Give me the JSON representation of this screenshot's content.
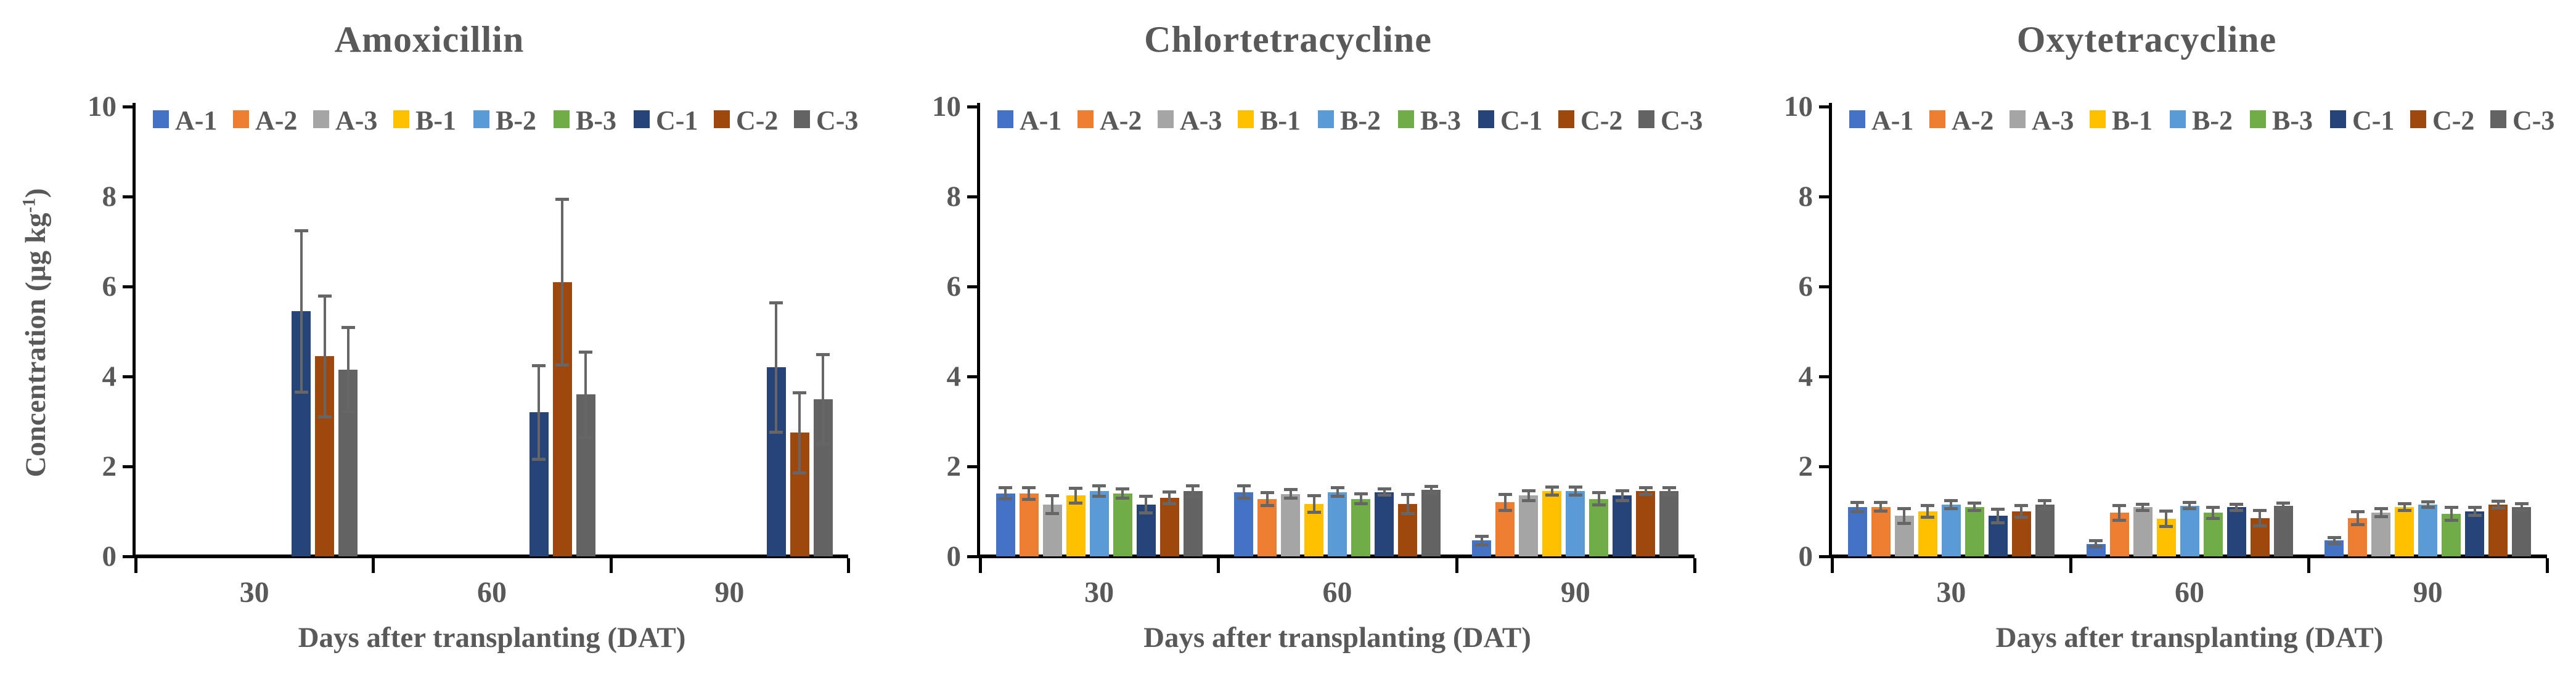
{
  "style": {
    "background": "#ffffff",
    "text_color": "#595959",
    "axis_color": "#000000",
    "error_bar_color": "#666666"
  },
  "chart_data": [
    {
      "type": "bar",
      "title": "Amoxicillin",
      "xlabel": "Days after transplanting (DAT)",
      "ylabel_main": "Concentration (µg kg",
      "ylabel_sup": "-1",
      "ylabel_end": ")",
      "categories": [
        "30",
        "60",
        "90"
      ],
      "ylim": [
        0,
        10
      ],
      "yticks": [
        0,
        2,
        4,
        6,
        8,
        10
      ],
      "grid": false,
      "legend_position": "top-inside",
      "series": [
        {
          "name": "A-1",
          "color": "#4472C4",
          "values": [
            0,
            0,
            0
          ],
          "errors": [
            0,
            0,
            0
          ]
        },
        {
          "name": "A-2",
          "color": "#ED7D31",
          "values": [
            0,
            0,
            0
          ],
          "errors": [
            0,
            0,
            0
          ]
        },
        {
          "name": "A-3",
          "color": "#A5A5A5",
          "values": [
            0,
            0,
            0
          ],
          "errors": [
            0,
            0,
            0
          ]
        },
        {
          "name": "B-1",
          "color": "#FFC000",
          "values": [
            0,
            0,
            0
          ],
          "errors": [
            0,
            0,
            0
          ]
        },
        {
          "name": "B-2",
          "color": "#5B9BD5",
          "values": [
            0,
            0,
            0
          ],
          "errors": [
            0,
            0,
            0
          ]
        },
        {
          "name": "B-3",
          "color": "#70AD47",
          "values": [
            0,
            0,
            0
          ],
          "errors": [
            0,
            0,
            0
          ]
        },
        {
          "name": "C-1",
          "color": "#264478",
          "values": [
            5.45,
            3.2,
            4.2
          ],
          "errors": [
            1.8,
            1.05,
            1.45
          ]
        },
        {
          "name": "C-2",
          "color": "#9E480E",
          "values": [
            4.45,
            6.1,
            2.75
          ],
          "errors": [
            1.35,
            1.85,
            0.9
          ]
        },
        {
          "name": "C-3",
          "color": "#636363",
          "values": [
            4.15,
            3.6,
            3.5
          ],
          "errors": [
            0.95,
            0.95,
            1.0
          ]
        }
      ]
    },
    {
      "type": "bar",
      "title": "Chlortetracycline",
      "xlabel": "Days after transplanting (DAT)",
      "categories": [
        "30",
        "60",
        "90"
      ],
      "ylim": [
        0,
        10
      ],
      "yticks": [
        0,
        2,
        4,
        6,
        8,
        10
      ],
      "grid": false,
      "legend_position": "top-inside",
      "series": [
        {
          "name": "A-1",
          "color": "#4472C4",
          "values": [
            1.4,
            1.43,
            0.35
          ],
          "errors": [
            0.13,
            0.14,
            0.1
          ]
        },
        {
          "name": "A-2",
          "color": "#ED7D31",
          "values": [
            1.4,
            1.28,
            1.2
          ],
          "errors": [
            0.14,
            0.15,
            0.18
          ]
        },
        {
          "name": "A-3",
          "color": "#A5A5A5",
          "values": [
            1.15,
            1.39,
            1.35
          ],
          "errors": [
            0.2,
            0.1,
            0.12
          ]
        },
        {
          "name": "B-1",
          "color": "#FFC000",
          "values": [
            1.35,
            1.16,
            1.45
          ],
          "errors": [
            0.17,
            0.19,
            0.1
          ]
        },
        {
          "name": "B-2",
          "color": "#5B9BD5",
          "values": [
            1.45,
            1.43,
            1.45
          ],
          "errors": [
            0.12,
            0.1,
            0.1
          ]
        },
        {
          "name": "B-3",
          "color": "#70AD47",
          "values": [
            1.4,
            1.28,
            1.28
          ],
          "errors": [
            0.11,
            0.12,
            0.14
          ]
        },
        {
          "name": "C-1",
          "color": "#264478",
          "values": [
            1.15,
            1.43,
            1.35
          ],
          "errors": [
            0.19,
            0.08,
            0.12
          ]
        },
        {
          "name": "C-2",
          "color": "#9E480E",
          "values": [
            1.3,
            1.16,
            1.45
          ],
          "errors": [
            0.14,
            0.22,
            0.08
          ]
        },
        {
          "name": "C-3",
          "color": "#636363",
          "values": [
            1.45,
            1.48,
            1.45
          ],
          "errors": [
            0.12,
            0.08,
            0.09
          ]
        }
      ]
    },
    {
      "type": "bar",
      "title": "Oxytetracycline",
      "xlabel": "Days after transplanting (DAT)",
      "categories": [
        "30",
        "60",
        "90"
      ],
      "ylim": [
        0,
        10
      ],
      "yticks": [
        0,
        2,
        4,
        6,
        8,
        10
      ],
      "grid": false,
      "legend_position": "top-inside",
      "series": [
        {
          "name": "A-1",
          "color": "#4472C4",
          "values": [
            1.1,
            0.28,
            0.35
          ],
          "errors": [
            0.11,
            0.08,
            0.08
          ]
        },
        {
          "name": "A-2",
          "color": "#ED7D31",
          "values": [
            1.1,
            0.97,
            0.85
          ],
          "errors": [
            0.1,
            0.17,
            0.15
          ]
        },
        {
          "name": "A-3",
          "color": "#A5A5A5",
          "values": [
            0.9,
            1.09,
            0.97
          ],
          "errors": [
            0.17,
            0.08,
            0.1
          ]
        },
        {
          "name": "B-1",
          "color": "#FFC000",
          "values": [
            1.0,
            0.84,
            1.1
          ],
          "errors": [
            0.14,
            0.18,
            0.08
          ]
        },
        {
          "name": "B-2",
          "color": "#5B9BD5",
          "values": [
            1.15,
            1.13,
            1.15
          ],
          "errors": [
            0.1,
            0.08,
            0.07
          ]
        },
        {
          "name": "B-3",
          "color": "#70AD47",
          "values": [
            1.1,
            0.97,
            0.95
          ],
          "errors": [
            0.09,
            0.13,
            0.15
          ]
        },
        {
          "name": "C-1",
          "color": "#264478",
          "values": [
            0.9,
            1.09,
            1.0
          ],
          "errors": [
            0.16,
            0.08,
            0.1
          ]
        },
        {
          "name": "C-2",
          "color": "#9E480E",
          "values": [
            1.0,
            0.85,
            1.15
          ],
          "errors": [
            0.14,
            0.18,
            0.08
          ]
        },
        {
          "name": "C-3",
          "color": "#636363",
          "values": [
            1.15,
            1.12,
            1.1
          ],
          "errors": [
            0.1,
            0.07,
            0.08
          ]
        }
      ]
    }
  ]
}
